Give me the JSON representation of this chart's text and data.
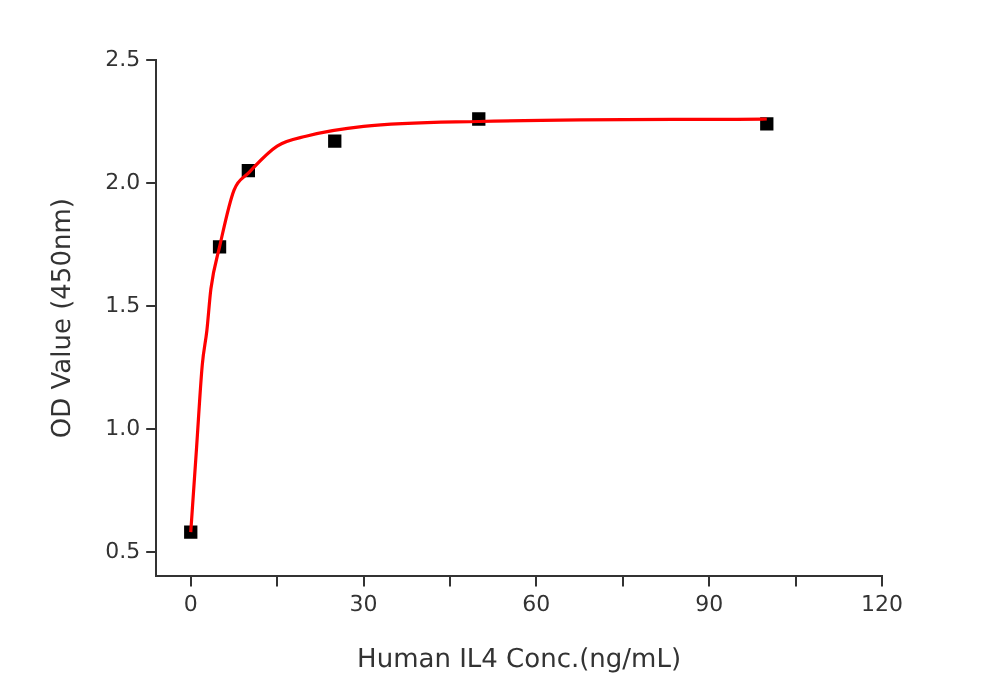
{
  "chart_data": {
    "type": "scatter",
    "xlabel": "Human IL4 Conc.(ng/mL)",
    "ylabel": "OD Value (450nm)",
    "xlim": [
      -6,
      120
    ],
    "xticks": [
      0,
      {
        "value": 15,
        "label": null
      },
      30,
      {
        "value": 45,
        "label": null
      },
      60,
      {
        "value": 75,
        "label": null
      },
      90,
      {
        "value": 105,
        "label": null
      },
      120
    ],
    "ylim": [
      0.4,
      2.5
    ],
    "yticks": [
      0.5,
      {
        "value": 1,
        "label": "1.0"
      },
      1.5,
      {
        "value": 2,
        "label": "2.0"
      },
      2.5
    ],
    "grid": false,
    "legend": false,
    "marker": "square",
    "series": [
      {
        "color": "#000000",
        "x": [
          0,
          5,
          10,
          25,
          50,
          100
        ],
        "values": [
          0.58,
          1.74,
          2.05,
          2.17,
          2.26,
          2.24
        ]
      },
      {
        "type": "line",
        "color": "#ff0000",
        "marker": "none",
        "line_style": "solid",
        "x": [
          0,
          1,
          2,
          2.8,
          3.5,
          5,
          7.5,
          10,
          15,
          20,
          30,
          50,
          100
        ],
        "values": [
          0.58,
          0.92,
          1.26,
          1.4,
          1.57,
          1.74,
          1.97,
          2.04,
          2.15,
          2.19,
          2.23,
          2.25,
          2.26
        ]
      }
    ]
  }
}
